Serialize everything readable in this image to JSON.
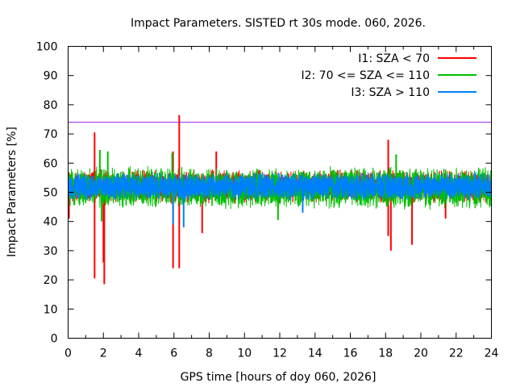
{
  "chart_data": {
    "type": "line",
    "title": "Impact Parameters. SISTED rt 30s mode. 060, 2026.",
    "xlabel": "GPS time [hours of doy 060, 2026]",
    "ylabel": "Impact Parameters [%]",
    "xlim": [
      0,
      24
    ],
    "ylim": [
      0,
      100
    ],
    "xticks": [
      0,
      2,
      4,
      6,
      8,
      10,
      12,
      14,
      16,
      18,
      20,
      22,
      24
    ],
    "yticks": [
      0,
      10,
      20,
      30,
      40,
      50,
      60,
      70,
      80,
      90,
      100
    ],
    "grid": false,
    "legend_position": "top-right",
    "threshold": {
      "value": 74,
      "color": "#a020f0"
    },
    "series": [
      {
        "name": "I1: SZA < 70",
        "color": "#ff0000",
        "typical_range": [
          46,
          58
        ],
        "spikes": [
          {
            "x": 0.05,
            "y": 41
          },
          {
            "x": 1.5,
            "y": 70.5
          },
          {
            "x": 1.5,
            "y": 20.5
          },
          {
            "x": 2.05,
            "y": 18.5
          },
          {
            "x": 2.0,
            "y": 26
          },
          {
            "x": 5.95,
            "y": 64
          },
          {
            "x": 5.95,
            "y": 24
          },
          {
            "x": 6.3,
            "y": 76.5
          },
          {
            "x": 6.3,
            "y": 24
          },
          {
            "x": 7.6,
            "y": 36
          },
          {
            "x": 8.4,
            "y": 64
          },
          {
            "x": 18.15,
            "y": 68
          },
          {
            "x": 18.15,
            "y": 35
          },
          {
            "x": 18.3,
            "y": 30
          },
          {
            "x": 18.55,
            "y": 48
          },
          {
            "x": 19.5,
            "y": 32
          },
          {
            "x": 21.4,
            "y": 41
          }
        ]
      },
      {
        "name": "I2: 70 <= SZA <= 110",
        "color": "#00c000",
        "typical_range": [
          44,
          59
        ],
        "spikes": [
          {
            "x": 1.8,
            "y": 64.5
          },
          {
            "x": 1.9,
            "y": 40
          },
          {
            "x": 2.25,
            "y": 64
          },
          {
            "x": 5.9,
            "y": 63.5
          },
          {
            "x": 11.9,
            "y": 40.5
          },
          {
            "x": 18.6,
            "y": 63
          }
        ]
      },
      {
        "name": "I3: SZA > 110",
        "color": "#0080ff",
        "typical_range": [
          47,
          57
        ],
        "spikes": [
          {
            "x": 6.55,
            "y": 38
          },
          {
            "x": 5.95,
            "y": 39
          },
          {
            "x": 13.3,
            "y": 43
          }
        ]
      }
    ]
  }
}
